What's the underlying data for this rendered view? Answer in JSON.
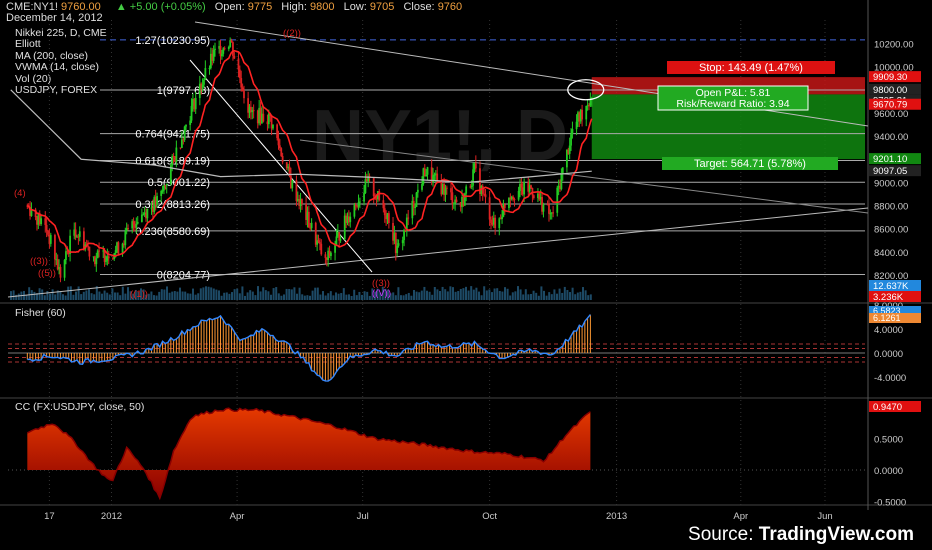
{
  "header": {
    "symbol": "CME:NY1!",
    "last": "9760.00",
    "change": "▲ +5.00 (+0.05%)",
    "open_label": "Open:",
    "open": "9775",
    "high_label": "High:",
    "high": "9800",
    "low_label": "Low:",
    "low": "9705",
    "close_label": "Close:",
    "close": "9760",
    "date": "December 14, 2012"
  },
  "legend": [
    "Nikkei 225, D, CME",
    "Elliott",
    "MA (200, close)",
    "VWMA (14, close)",
    "Vol (20)",
    "USDJPY, FOREX"
  ],
  "watermark": "NY1!, D",
  "fisher_label": "Fisher (60)",
  "cc_label": "CC (FX:USDJPY, close, 50)",
  "footer": {
    "source": "Source:",
    "brand": "TradingView.com"
  },
  "colors": {
    "bull": "#22cc22",
    "bear": "#dd2222",
    "vwma": "#ff2222",
    "ma200": "#bbbbbb",
    "fib": "#aaaaaa",
    "fisher_line": "#3388ff",
    "fisher_hist": "#ff9933",
    "cc_fill": "#cc2200",
    "stop_zone": "#d01818",
    "target_zone": "#118811",
    "elliott": "#dd2222",
    "elliott_alt": "#cc33ff",
    "volume": "#1d4a66"
  },
  "chart_data": [
    {
      "type": "candlestick",
      "title": "Nikkei 225, D, CME",
      "y_axis_ticks": [
        8200,
        8400,
        8600,
        8800,
        9000,
        9200,
        9400,
        9600,
        9800,
        10000,
        10200
      ],
      "x_axis_ticks": [
        "17",
        "2012",
        "Apr",
        "Jul",
        "Oct",
        "2013",
        "Apr",
        "Jun"
      ],
      "ohlc_last": {
        "date": "December 14, 2012",
        "open": 9775,
        "high": 9800,
        "low": 9705,
        "close": 9760,
        "change": 5.0,
        "change_pct": 0.05
      },
      "price_path": [
        [
          "2011-11-01",
          8800
        ],
        [
          "2011-11-15",
          8600
        ],
        [
          "2011-11-25",
          8200
        ],
        [
          "2011-12-05",
          8600
        ],
        [
          "2011-12-20",
          8350
        ],
        [
          "2012-01-05",
          8420
        ],
        [
          "2012-01-20",
          8700
        ],
        [
          "2012-02-05",
          8850
        ],
        [
          "2012-02-15",
          9200
        ],
        [
          "2012-03-01",
          9700
        ],
        [
          "2012-03-15",
          10100
        ],
        [
          "2012-03-27",
          10230
        ],
        [
          "2012-04-10",
          9600
        ],
        [
          "2012-04-25",
          9550
        ],
        [
          "2012-05-10",
          9000
        ],
        [
          "2012-05-25",
          8600
        ],
        [
          "2012-06-04",
          8300
        ],
        [
          "2012-06-20",
          8700
        ],
        [
          "2012-07-05",
          9000
        ],
        [
          "2012-07-20",
          8700
        ],
        [
          "2012-07-26",
          8400
        ],
        [
          "2012-08-15",
          9100
        ],
        [
          "2012-08-28",
          8950
        ],
        [
          "2012-09-10",
          8800
        ],
        [
          "2012-09-20",
          9100
        ],
        [
          "2012-10-05",
          8600
        ],
        [
          "2012-10-15",
          8900
        ],
        [
          "2012-10-31",
          8950
        ],
        [
          "2012-11-15",
          8700
        ],
        [
          "2012-11-30",
          9450
        ],
        [
          "2012-12-14",
          9760
        ]
      ],
      "fibonacci": [
        {
          "label": "0(8204.77)",
          "value": 8204.77
        },
        {
          "label": "0.236(8580.69)",
          "value": 8580.69
        },
        {
          "label": "0.382(8813.26)",
          "value": 8813.26
        },
        {
          "label": "0.5(9001.22)",
          "value": 9001.22
        },
        {
          "label": "0.618(9189.19)",
          "value": 9189.19
        },
        {
          "label": "0.764(9421.75)",
          "value": 9421.75
        },
        {
          "label": "1(9797.68)",
          "value": 9797.68
        },
        {
          "label": "1.27(10230.95)",
          "value": 10230.95
        }
      ],
      "price_labels": [
        {
          "text": "Stop: 143.49 (1.47%)",
          "kind": "stop"
        },
        {
          "text": "9909.30",
          "value": 9909.3,
          "kind": "red"
        },
        {
          "text": "9800.00",
          "value": 9800.0,
          "kind": "dark"
        },
        {
          "text": "9705.81",
          "value": 9705.81,
          "kind": "dark"
        },
        {
          "text": "9670.79",
          "value": 9670.79,
          "kind": "red"
        },
        {
          "text": "9201.10",
          "value": 9201.1,
          "kind": "green"
        },
        {
          "text": "9097.05",
          "value": 9097.05,
          "kind": "dark"
        },
        {
          "text": "12.637K",
          "kind": "blue"
        },
        {
          "text": "3.236K",
          "kind": "red"
        }
      ],
      "position": {
        "open_pnl": "Open P&L: 5.81",
        "risk_reward": "Risk/Reward Ratio: 3.94",
        "target": "Target: 564.71 (5.78%)"
      },
      "elliott_labels": [
        "(4)",
        "((3))",
        "((5))",
        "((1))",
        "((2))",
        "((3))",
        "((V))"
      ]
    },
    {
      "type": "histogram",
      "title": "Fisher (60)",
      "y_axis_ticks": [
        -4.0,
        0.0,
        4.0,
        8.0
      ],
      "last_values": [
        "6.5823",
        "6.1261"
      ],
      "path": [
        [
          "2011-11-01",
          -1.0
        ],
        [
          "2011-11-20",
          -0.5
        ],
        [
          "2011-12-10",
          -1.5
        ],
        [
          "2012-01-05",
          -0.8
        ],
        [
          "2012-01-25",
          0.3
        ],
        [
          "2012-02-15",
          2.5
        ],
        [
          "2012-03-05",
          5.0
        ],
        [
          "2012-03-20",
          6.2
        ],
        [
          "2012-04-05",
          2.0
        ],
        [
          "2012-04-20",
          4.0
        ],
        [
          "2012-05-10",
          1.0
        ],
        [
          "2012-05-25",
          -2.5
        ],
        [
          "2012-06-04",
          -5.0
        ],
        [
          "2012-06-20",
          -1.0
        ],
        [
          "2012-07-10",
          0.5
        ],
        [
          "2012-07-26",
          -0.5
        ],
        [
          "2012-08-15",
          2.0
        ],
        [
          "2012-08-28",
          1.0
        ],
        [
          "2012-09-20",
          1.5
        ],
        [
          "2012-10-10",
          -0.8
        ],
        [
          "2012-10-31",
          0.5
        ],
        [
          "2012-11-15",
          -0.3
        ],
        [
          "2012-11-30",
          3.0
        ],
        [
          "2012-12-14",
          6.3
        ]
      ]
    },
    {
      "type": "area",
      "title": "CC (FX:USDJPY, close, 50)",
      "y_axis_ticks": [
        -0.5,
        0.0,
        0.5,
        1.0
      ],
      "last_value": "0.9470",
      "path": [
        [
          "2011-11-01",
          0.6
        ],
        [
          "2011-11-20",
          0.75
        ],
        [
          "2011-12-05",
          0.45
        ],
        [
          "2011-12-20",
          0.05
        ],
        [
          "2012-01-01",
          -0.2
        ],
        [
          "2012-01-12",
          0.35
        ],
        [
          "2012-01-25",
          0.0
        ],
        [
          "2012-02-05",
          -0.45
        ],
        [
          "2012-02-15",
          0.3
        ],
        [
          "2012-02-28",
          0.85
        ],
        [
          "2012-03-20",
          0.96
        ],
        [
          "2012-04-15",
          0.95
        ],
        [
          "2012-05-10",
          0.85
        ],
        [
          "2012-06-10",
          0.7
        ],
        [
          "2012-07-10",
          0.5
        ],
        [
          "2012-08-15",
          0.4
        ],
        [
          "2012-09-15",
          0.3
        ],
        [
          "2012-10-15",
          0.25
        ],
        [
          "2012-11-10",
          0.15
        ],
        [
          "2012-11-25",
          0.55
        ],
        [
          "2012-12-14",
          0.947
        ]
      ]
    }
  ]
}
